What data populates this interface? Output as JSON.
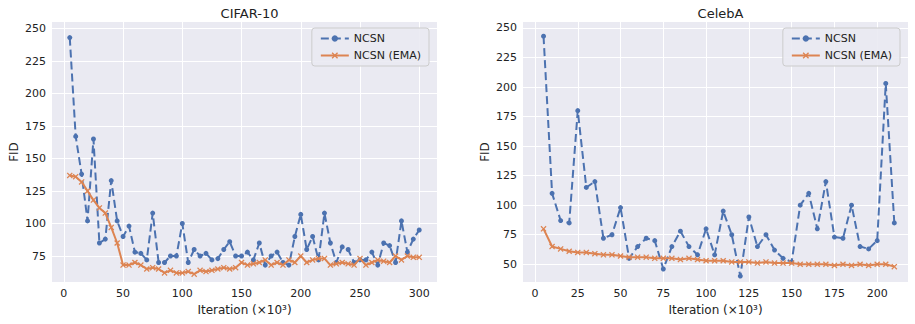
{
  "chart_data": [
    {
      "type": "line",
      "title": "CIFAR-10",
      "x_label": "Iteration (×10³)",
      "y_label": "FID",
      "x": [
        5,
        10,
        15,
        20,
        25,
        30,
        35,
        40,
        45,
        50,
        55,
        60,
        65,
        70,
        75,
        80,
        85,
        90,
        95,
        100,
        105,
        110,
        115,
        120,
        125,
        130,
        135,
        140,
        145,
        150,
        155,
        160,
        165,
        170,
        175,
        180,
        185,
        190,
        195,
        200,
        205,
        210,
        215,
        220,
        225,
        230,
        235,
        240,
        245,
        250,
        255,
        260,
        265,
        270,
        275,
        280,
        285,
        290,
        295,
        300
      ],
      "series": [
        {
          "name": "NCSN",
          "color": "#4c72b0",
          "marker": "circle",
          "line_style": "dashed",
          "values": [
            243,
            167,
            138,
            102,
            165,
            85,
            88,
            133,
            102,
            90,
            98,
            78,
            77,
            72,
            108,
            70,
            70,
            75,
            75,
            100,
            70,
            80,
            75,
            77,
            72,
            73,
            80,
            86,
            75,
            75,
            78,
            72,
            85,
            68,
            75,
            78,
            70,
            68,
            90,
            107,
            80,
            90,
            72,
            108,
            85,
            70,
            82,
            80,
            70,
            72,
            72,
            78,
            68,
            85,
            83,
            70,
            102,
            78,
            88,
            95
          ]
        },
        {
          "name": "NCSN (EMA)",
          "color": "#dd8452",
          "marker": "x",
          "line_style": "solid",
          "values": [
            137,
            136,
            132,
            125,
            118,
            112,
            108,
            97,
            85,
            68,
            68,
            70,
            68,
            65,
            66,
            65,
            62,
            64,
            62,
            62,
            63,
            61,
            64,
            63,
            64,
            65,
            66,
            65,
            66,
            70,
            68,
            69,
            70,
            72,
            68,
            70,
            68,
            72,
            70,
            75,
            70,
            72,
            73,
            73,
            68,
            69,
            70,
            69,
            68,
            73,
            68,
            70,
            72,
            71,
            70,
            75,
            72,
            75,
            74,
            74
          ]
        }
      ],
      "xlim": [
        -10,
        315
      ],
      "ylim": [
        55,
        255
      ],
      "xticks": [
        0,
        50,
        100,
        150,
        200,
        250,
        300
      ],
      "yticks": [
        75,
        100,
        125,
        150,
        175,
        200,
        225,
        250
      ],
      "grid": true,
      "legend": "upper right"
    },
    {
      "type": "line",
      "title": "CelebA",
      "x_label": "Iteration (×10³)",
      "y_label": "FID",
      "x": [
        5,
        10,
        15,
        20,
        25,
        30,
        35,
        40,
        45,
        50,
        55,
        60,
        65,
        70,
        75,
        80,
        85,
        90,
        95,
        100,
        105,
        110,
        115,
        120,
        125,
        130,
        135,
        140,
        145,
        150,
        155,
        160,
        165,
        170,
        175,
        180,
        185,
        190,
        195,
        200,
        205,
        210
      ],
      "series": [
        {
          "name": "NCSN",
          "color": "#4c72b0",
          "marker": "circle",
          "line_style": "dashed",
          "values": [
            243,
            110,
            87,
            85,
            180,
            115,
            120,
            72,
            75,
            98,
            55,
            65,
            72,
            70,
            46,
            65,
            78,
            65,
            58,
            80,
            58,
            95,
            75,
            40,
            90,
            65,
            75,
            62,
            55,
            52,
            100,
            110,
            80,
            120,
            73,
            72,
            100,
            65,
            63,
            70,
            203,
            85
          ]
        },
        {
          "name": "NCSN (EMA)",
          "color": "#dd8452",
          "marker": "x",
          "line_style": "solid",
          "values": [
            80,
            65,
            63,
            61,
            60,
            60,
            59,
            58,
            58,
            57,
            56,
            56,
            56,
            55,
            55,
            55,
            54,
            55,
            54,
            53,
            53,
            53,
            52,
            52,
            52,
            51,
            52,
            51,
            51,
            51,
            50,
            50,
            50,
            50,
            49,
            50,
            49,
            50,
            49,
            50,
            50,
            48
          ]
        }
      ],
      "xlim": [
        -7,
        218
      ],
      "ylim": [
        35,
        255
      ],
      "xticks": [
        0,
        25,
        50,
        75,
        100,
        125,
        150,
        175,
        200
      ],
      "yticks": [
        50,
        75,
        100,
        125,
        150,
        175,
        200,
        225,
        250
      ],
      "grid": true,
      "legend": "upper right"
    }
  ]
}
